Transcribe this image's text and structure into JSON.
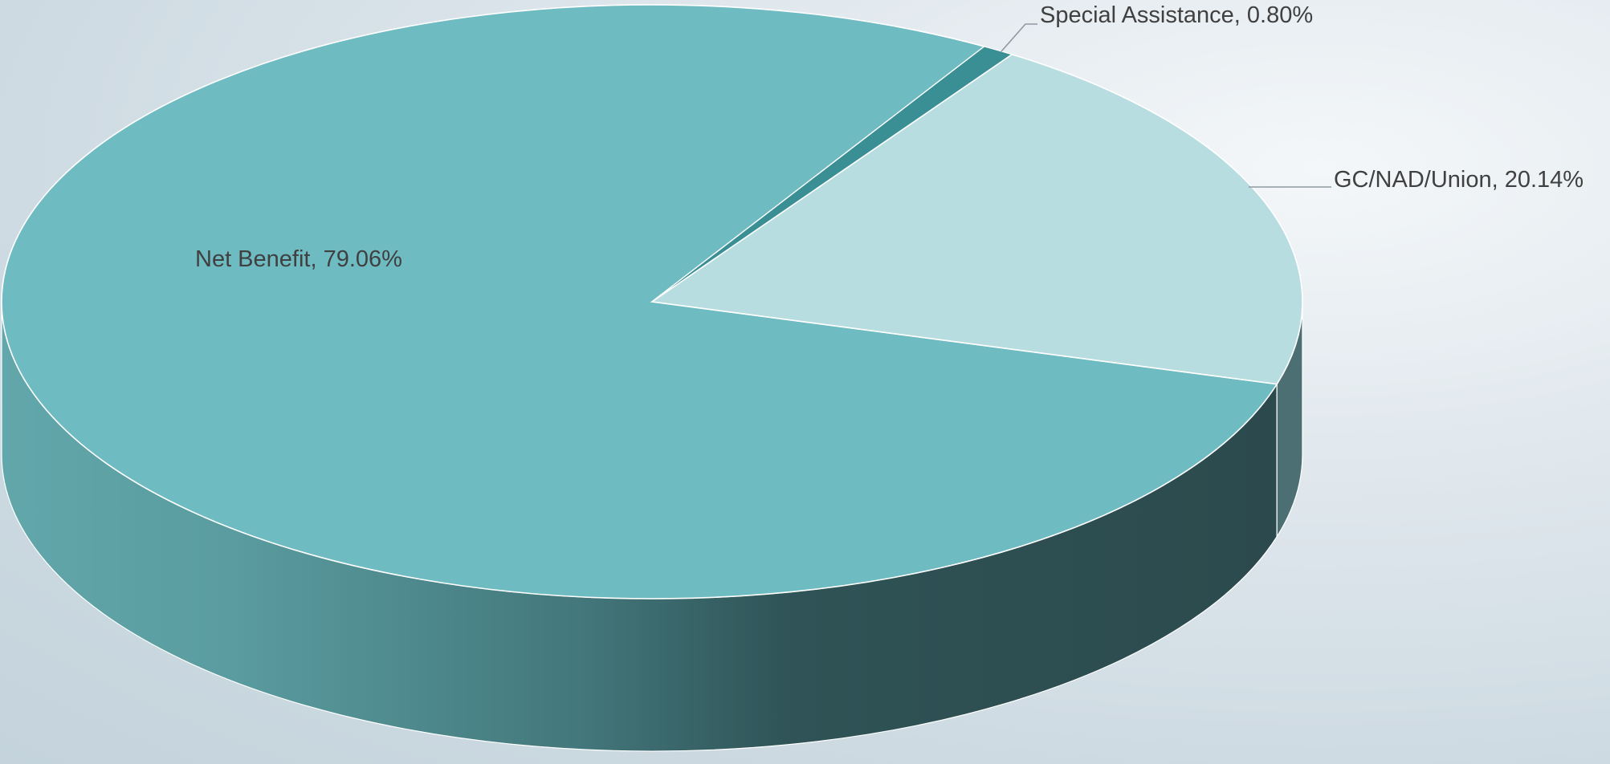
{
  "chart_data": {
    "type": "pie",
    "style": "3d",
    "title": "",
    "series": [
      {
        "values": [
          79.06,
          0.8,
          20.14
        ],
        "labels": [
          "Net Benefit",
          "Special Assistance",
          "GC/NAD/Union"
        ]
      }
    ],
    "slices": [
      {
        "label": "Net Benefit",
        "value": 79.06,
        "display": "Net Benefit, 79.06%",
        "color": "#6fbbc2"
      },
      {
        "label": "Special Assistance",
        "value": 0.8,
        "display": "Special Assistance, 0.80%",
        "color": "#3a8f95"
      },
      {
        "label": "GC/NAD/Union",
        "value": 20.14,
        "display": "GC/NAD/Union, 20.14%",
        "color": "#b8dde0"
      }
    ],
    "legend": "none",
    "data_labels": "category-and-percentage"
  }
}
